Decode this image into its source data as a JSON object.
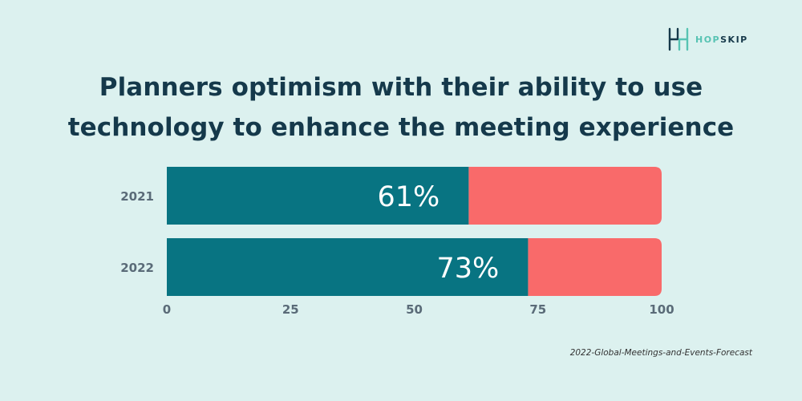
{
  "logo": {
    "part1": "HOP",
    "part2": "SKIP"
  },
  "title_line1": "Planners optimism with their ability to use",
  "title_line2": "technology to enhance the meeting experience",
  "source": "2022-Global-Meetings-and-Events-Forecast",
  "colors": {
    "primary": "#087482",
    "remainder": "#f96a6a",
    "background": "#dcf1ef",
    "axis_text": "#5a6b78"
  },
  "chart_data": {
    "type": "bar",
    "orientation": "horizontal",
    "stacked": true,
    "title": "Planners optimism with their ability to use technology to enhance the meeting experience",
    "categories": [
      "2021",
      "2022"
    ],
    "series": [
      {
        "values": [
          61,
          73
        ],
        "labels": [
          "61%",
          "73%"
        ],
        "color": "#087482"
      },
      {
        "values": [
          39,
          27
        ],
        "color": "#f96a6a"
      }
    ],
    "xlim": [
      0,
      100
    ],
    "xticks": [
      0,
      25,
      50,
      75,
      100
    ],
    "grid": false,
    "legend": "none"
  }
}
